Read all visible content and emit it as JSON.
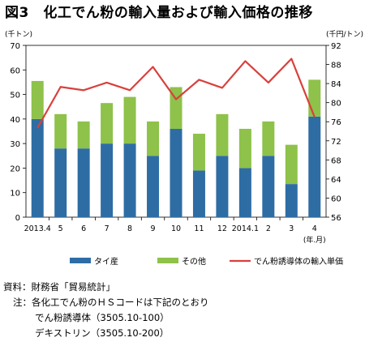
{
  "figure": {
    "title": "図3　化工でん粉の輸入量および輸入価格の推移"
  },
  "chart_data": {
    "type": "bar",
    "categories": [
      "2013.4",
      "5",
      "6",
      "7",
      "8",
      "9",
      "10",
      "11",
      "12",
      "2014.1",
      "2",
      "3",
      "4"
    ],
    "x_unit": "(年.月)",
    "left_axis": {
      "unit": "(千トン)",
      "range": [
        0,
        70
      ],
      "ticks": [
        "0",
        "10",
        "20",
        "30",
        "40",
        "50",
        "60",
        "70"
      ]
    },
    "right_axis": {
      "unit": "(千円/トン)",
      "range": [
        56,
        92
      ],
      "ticks": [
        "56",
        "60",
        "64",
        "68",
        "72",
        "76",
        "80",
        "84",
        "88",
        "92"
      ]
    },
    "series": [
      {
        "name": "タイ産",
        "kind": "bar",
        "axis": "left",
        "color": "#2e6da4",
        "values": [
          40,
          28,
          28,
          30,
          30,
          25,
          36,
          19,
          25,
          20,
          25,
          13.5,
          41
        ]
      },
      {
        "name": "その他",
        "kind": "bar",
        "axis": "left",
        "color": "#8ec24a",
        "values": [
          15.5,
          14,
          11,
          16.5,
          19,
          14,
          17,
          15,
          17,
          16,
          14,
          16,
          15
        ]
      },
      {
        "name": "でん粉誘導体の輸入単価",
        "kind": "line",
        "axis": "right",
        "color": "#d9403c",
        "values": [
          74.7,
          83.3,
          82.6,
          84.2,
          82.6,
          87.5,
          80.7,
          84.8,
          83.1,
          88.7,
          84.2,
          89.2,
          77
        ]
      }
    ],
    "legend_position": "bottom",
    "grid": false
  },
  "notes": {
    "source": "資料：財務省「貿易統計」",
    "note": "注：各化工でん粉のＨＳコードは下記のとおり",
    "code1": "でん粉誘導体（3505.10-100）",
    "code2": "デキストリン（3505.10-200）"
  }
}
